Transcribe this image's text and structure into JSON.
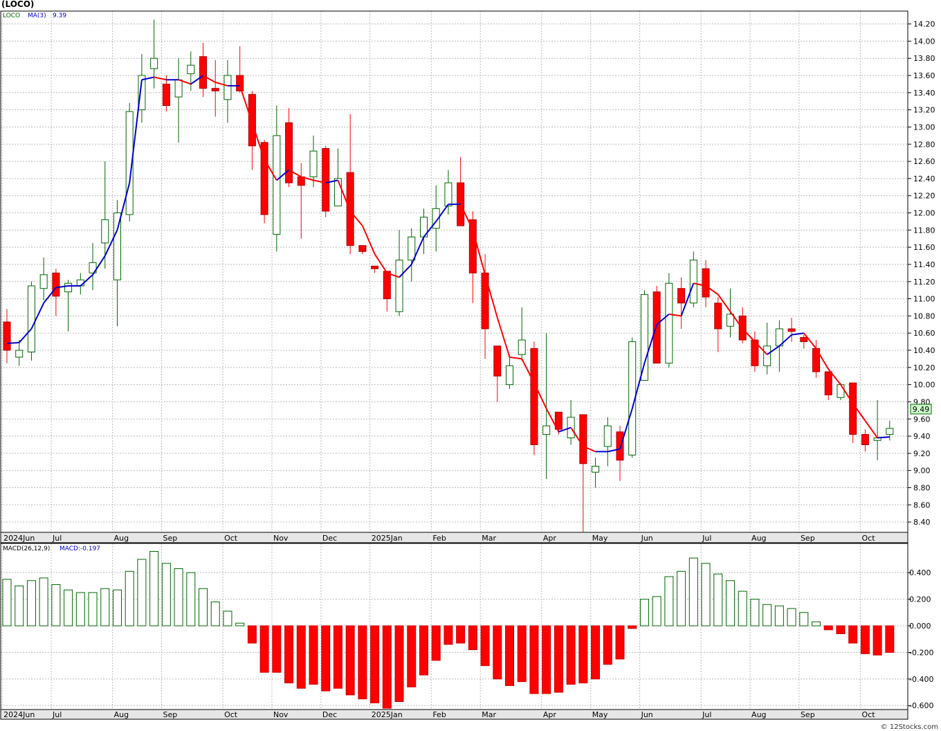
{
  "title": "(LOCO)",
  "footer": "© 12Stocks.com",
  "colors": {
    "up": "#006600",
    "down": "#ff0000",
    "ma_up": "#0000cc",
    "ma_down": "#ff0000",
    "grid": "#bbbbbb",
    "macd_up": "#006600",
    "macd_down": "#ff0000"
  },
  "price_panel": {
    "legend_symbol": "LOCO",
    "legend_ma": "MA(3)",
    "legend_ma_value": "9.39",
    "last_price_label": "9.49",
    "y_ticks": [
      14.2,
      14.0,
      13.8,
      13.6,
      13.4,
      13.2,
      13.0,
      12.8,
      12.6,
      12.4,
      12.2,
      12.0,
      11.8,
      11.6,
      11.4,
      11.2,
      11.0,
      10.8,
      10.6,
      10.4,
      10.2,
      10.0,
      9.8,
      9.6,
      9.4,
      9.2,
      9.0,
      8.8,
      8.6,
      8.4
    ],
    "y_tick_labels": [
      "14.20",
      "14.00",
      "13.80",
      "13.60",
      "13.40",
      "13.20",
      "13.00",
      "12.80",
      "12.60",
      "12.40",
      "12.20",
      "12.00",
      "11.80",
      "11.60",
      "11.40",
      "11.20",
      "11.00",
      "10.80",
      "10.60",
      "10.40",
      "10.20",
      "10.00",
      "9.80",
      "9.60",
      "9.40",
      "9.20",
      "9.00",
      "8.80",
      "8.60",
      "8.40"
    ],
    "ylim": [
      8.28,
      14.35
    ]
  },
  "macd_panel": {
    "legend_label": "MACD(26,12,9)",
    "legend_value": "MACD:-0.197",
    "y_ticks": [
      0.4,
      0.2,
      0.0,
      -0.2,
      -0.4,
      -0.6
    ],
    "y_tick_labels": [
      "0.400",
      "0.200",
      "0.000",
      "-0.200",
      "-0.400",
      "-0.600"
    ],
    "ylim": [
      -0.63,
      0.62
    ]
  },
  "x_axis_labels": [
    {
      "label": "2024Jun",
      "index": 0
    },
    {
      "label": "Jul",
      "index": 4
    },
    {
      "label": "Aug",
      "index": 9
    },
    {
      "label": "Sep",
      "index": 13
    },
    {
      "label": "Oct",
      "index": 18
    },
    {
      "label": "Nov",
      "index": 22
    },
    {
      "label": "Dec",
      "index": 26
    },
    {
      "label": "2025Jan",
      "index": 30
    },
    {
      "label": "Feb",
      "index": 35
    },
    {
      "label": "Mar",
      "index": 39
    },
    {
      "label": "Apr",
      "index": 44
    },
    {
      "label": "May",
      "index": 48
    },
    {
      "label": "Jun",
      "index": 52
    },
    {
      "label": "Jul",
      "index": 57
    },
    {
      "label": "Aug",
      "index": 61
    },
    {
      "label": "Sep",
      "index": 65
    },
    {
      "label": "Oct",
      "index": 70
    }
  ],
  "chart_data": {
    "type": "candlestick",
    "title": "(LOCO)",
    "columns": [
      "open",
      "high",
      "low",
      "close",
      "ma3",
      "macd"
    ],
    "bars": [
      [
        10.73,
        10.88,
        10.25,
        10.4,
        10.48,
        0.35
      ],
      [
        10.32,
        10.52,
        10.22,
        10.4,
        10.49,
        0.3
      ],
      [
        10.38,
        11.2,
        10.28,
        11.15,
        10.65,
        0.34
      ],
      [
        11.12,
        11.48,
        10.98,
        11.28,
        10.95,
        0.36
      ],
      [
        11.3,
        11.35,
        10.8,
        11.03,
        11.13,
        0.31
      ],
      [
        11.08,
        11.22,
        10.62,
        11.18,
        11.15,
        0.27
      ],
      [
        11.15,
        11.3,
        11.05,
        11.22,
        11.15,
        0.25
      ],
      [
        11.3,
        11.65,
        11.1,
        11.42,
        11.28,
        0.25
      ],
      [
        11.65,
        12.6,
        11.35,
        11.92,
        11.5,
        0.28
      ],
      [
        11.22,
        12.15,
        10.68,
        12.0,
        11.8,
        0.27
      ],
      [
        11.98,
        13.28,
        11.9,
        13.18,
        12.35,
        0.41
      ],
      [
        13.2,
        13.85,
        13.05,
        13.6,
        13.55,
        0.5
      ],
      [
        13.68,
        14.25,
        13.45,
        13.8,
        13.58,
        0.56
      ],
      [
        13.5,
        13.6,
        13.18,
        13.25,
        13.55,
        0.47
      ],
      [
        13.35,
        13.8,
        12.82,
        13.55,
        13.55,
        0.43
      ],
      [
        13.62,
        13.88,
        13.42,
        13.72,
        13.5,
        0.4
      ],
      [
        13.82,
        13.98,
        13.35,
        13.45,
        13.6,
        0.28
      ],
      [
        13.45,
        13.78,
        13.12,
        13.42,
        13.52,
        0.18
      ],
      [
        13.32,
        13.78,
        13.05,
        13.6,
        13.48,
        0.11
      ],
      [
        13.6,
        13.94,
        13.4,
        13.42,
        13.48,
        0.02
      ],
      [
        13.38,
        13.42,
        12.5,
        12.78,
        13.05,
        -0.13
      ],
      [
        12.82,
        12.85,
        11.88,
        11.98,
        12.62,
        -0.35
      ],
      [
        11.75,
        13.25,
        11.55,
        12.9,
        12.38,
        -0.35
      ],
      [
        13.05,
        13.22,
        12.3,
        12.35,
        12.5,
        -0.43
      ],
      [
        12.42,
        12.58,
        11.7,
        12.32,
        12.42,
        -0.47
      ],
      [
        12.42,
        12.9,
        12.3,
        12.72,
        12.38,
        -0.44
      ],
      [
        12.75,
        12.78,
        11.95,
        12.02,
        12.35,
        -0.49
      ],
      [
        12.08,
        12.75,
        12.08,
        12.4,
        12.38,
        -0.47
      ],
      [
        12.47,
        13.15,
        11.52,
        11.62,
        12.02,
        -0.52
      ],
      [
        11.62,
        11.62,
        11.52,
        11.55,
        11.85,
        -0.55
      ],
      [
        11.38,
        11.38,
        11.3,
        11.35,
        11.52,
        -0.58
      ],
      [
        11.32,
        11.32,
        10.85,
        11.0,
        11.3,
        -0.62
      ],
      [
        10.85,
        11.8,
        10.8,
        11.45,
        11.25,
        -0.57
      ],
      [
        11.45,
        11.82,
        11.2,
        11.72,
        11.4,
        -0.46
      ],
      [
        11.72,
        12.05,
        11.52,
        11.95,
        11.72,
        -0.37
      ],
      [
        11.82,
        12.32,
        11.55,
        12.05,
        11.9,
        -0.26
      ],
      [
        12.08,
        12.5,
        11.98,
        12.35,
        12.1,
        -0.14
      ],
      [
        12.35,
        12.65,
        11.88,
        11.85,
        12.1,
        -0.13
      ],
      [
        11.92,
        12.02,
        10.95,
        11.3,
        11.8,
        -0.18
      ],
      [
        11.3,
        11.52,
        10.3,
        10.65,
        11.28,
        -0.3
      ],
      [
        10.45,
        10.45,
        9.8,
        10.1,
        10.78,
        -0.4
      ],
      [
        10.0,
        10.35,
        9.95,
        10.22,
        10.32,
        -0.45
      ],
      [
        10.35,
        10.9,
        10.28,
        10.52,
        10.3,
        -0.42
      ],
      [
        10.42,
        10.5,
        9.18,
        9.3,
        10.02,
        -0.51
      ],
      [
        9.42,
        10.6,
        8.9,
        9.52,
        9.72,
        -0.51
      ],
      [
        9.68,
        9.68,
        9.42,
        9.48,
        9.45,
        -0.5
      ],
      [
        9.38,
        9.82,
        9.3,
        9.62,
        9.5,
        -0.44
      ],
      [
        9.65,
        9.65,
        8.28,
        9.08,
        9.28,
        -0.43
      ],
      [
        8.98,
        9.15,
        8.8,
        9.05,
        9.22,
        -0.4
      ],
      [
        9.28,
        9.62,
        9.05,
        9.52,
        9.22,
        -0.29
      ],
      [
        9.45,
        9.52,
        8.88,
        9.12,
        9.25,
        -0.25
      ],
      [
        9.18,
        10.55,
        9.15,
        10.5,
        9.72,
        -0.02
      ],
      [
        10.05,
        11.1,
        10.2,
        11.05,
        10.25,
        0.2
      ],
      [
        11.08,
        11.15,
        10.3,
        10.25,
        10.7,
        0.22
      ],
      [
        10.25,
        11.3,
        10.2,
        11.18,
        10.82,
        0.37
      ],
      [
        11.12,
        11.25,
        10.65,
        10.95,
        10.8,
        0.41
      ],
      [
        10.95,
        11.55,
        10.9,
        11.45,
        11.18,
        0.51
      ],
      [
        11.35,
        11.45,
        10.9,
        11.02,
        11.15,
        0.47
      ],
      [
        10.95,
        11.02,
        10.38,
        10.65,
        11.05,
        0.39
      ],
      [
        10.68,
        11.12,
        10.55,
        10.82,
        10.85,
        0.34
      ],
      [
        10.8,
        10.9,
        10.48,
        10.52,
        10.65,
        0.26
      ],
      [
        10.52,
        10.62,
        10.15,
        10.22,
        10.5,
        0.2
      ],
      [
        10.22,
        10.72,
        10.12,
        10.45,
        10.35,
        0.16
      ],
      [
        10.45,
        10.75,
        10.15,
        10.65,
        10.45,
        0.15
      ],
      [
        10.65,
        10.78,
        10.5,
        10.62,
        10.58,
        0.13
      ],
      [
        10.55,
        10.58,
        10.42,
        10.5,
        10.6,
        0.1
      ],
      [
        10.42,
        10.52,
        10.08,
        10.15,
        10.42,
        0.03
      ],
      [
        10.15,
        10.15,
        9.82,
        9.88,
        10.18,
        -0.03
      ],
      [
        9.85,
        10.02,
        9.82,
        10.0,
        10.0,
        -0.06
      ],
      [
        10.02,
        10.02,
        9.32,
        9.42,
        9.78,
        -0.13
      ],
      [
        9.42,
        9.48,
        9.22,
        9.3,
        9.58,
        -0.21
      ],
      [
        9.35,
        9.82,
        9.12,
        9.38,
        9.38,
        -0.22
      ],
      [
        9.42,
        9.58,
        9.35,
        9.49,
        9.39,
        -0.2
      ]
    ]
  }
}
